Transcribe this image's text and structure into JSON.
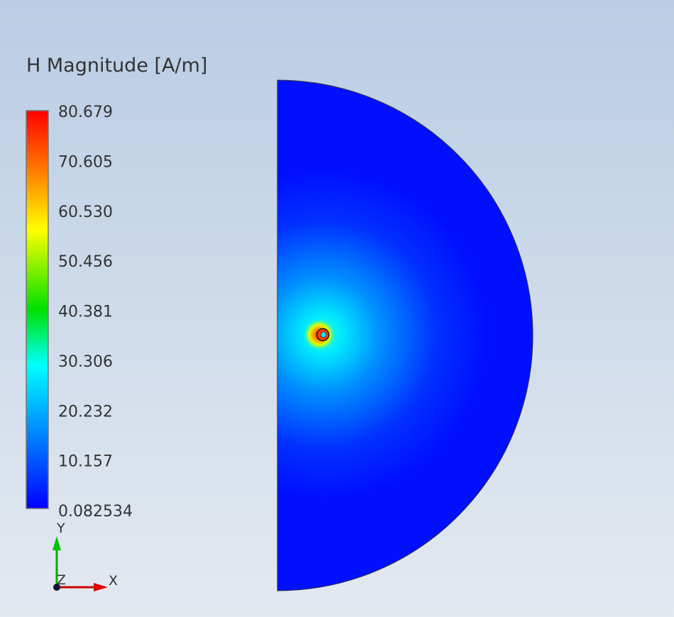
{
  "legend": {
    "title": "H Magnitude [A/m]",
    "labels": [
      "80.679",
      "70.605",
      "60.530",
      "50.456",
      "40.381",
      "30.306",
      "20.232",
      "10.157",
      "0.082534"
    ]
  },
  "triad": {
    "y": "Y",
    "z": "Z",
    "x": "X"
  }
}
